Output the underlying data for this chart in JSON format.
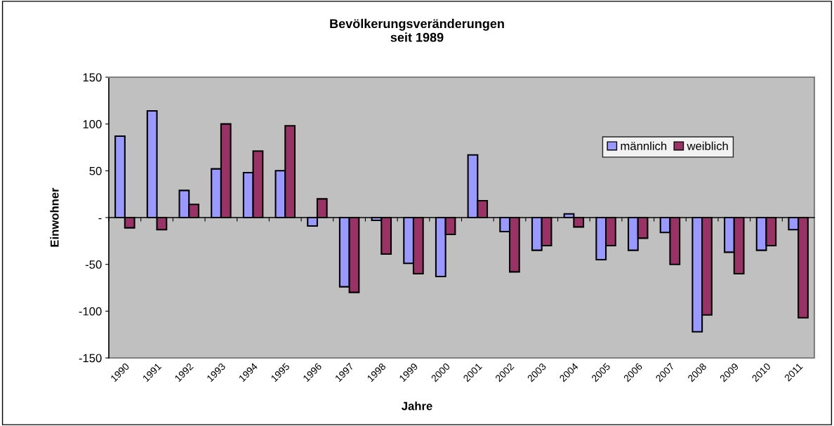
{
  "chart_data": {
    "type": "bar",
    "title": "Bevölkerungsveränderungen\nseit 1989",
    "xlabel": "Jahre",
    "ylabel": "Einwohner",
    "categories": [
      "1990",
      "1991",
      "1992",
      "1993",
      "1994",
      "1995",
      "1996",
      "1997",
      "1998",
      "1999",
      "2000",
      "2001",
      "2002",
      "2003",
      "2004",
      "2005",
      "2006",
      "2007",
      "2008",
      "2009",
      "2010",
      "2011"
    ],
    "series": [
      {
        "name": "männlich",
        "color": "#9999ff",
        "values": [
          87,
          114,
          29,
          52,
          48,
          50,
          -9,
          -74,
          -3,
          -49,
          -63,
          67,
          -15,
          -35,
          4,
          -45,
          -35,
          -16,
          -122,
          -37,
          -35,
          -13
        ]
      },
      {
        "name": "weiblich",
        "color": "#993366",
        "values": [
          -11,
          -13,
          14,
          100,
          71,
          98,
          20,
          -80,
          -39,
          -60,
          -18,
          18,
          -58,
          -30,
          -10,
          -30,
          -22,
          -50,
          -104,
          -60,
          -30,
          -107
        ]
      }
    ],
    "ylim": [
      -150,
      150
    ],
    "yticks": [
      -150,
      -100,
      -50,
      {
        "value": 0,
        "label": "-"
      },
      50,
      100,
      150
    ],
    "legend": "top right"
  }
}
